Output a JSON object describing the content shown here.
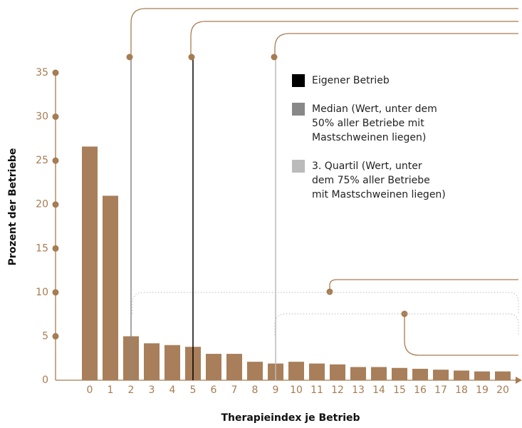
{
  "chart_data": {
    "type": "bar",
    "x_label": "Therapieindex je Betrieb",
    "y_label": "Prozent der Betriebe",
    "categories": [
      0,
      1,
      2,
      3,
      4,
      5,
      6,
      7,
      8,
      9,
      10,
      11,
      12,
      13,
      14,
      15,
      16,
      17,
      18,
      19,
      20
    ],
    "values": [
      26.6,
      21.0,
      5.0,
      4.2,
      4.0,
      3.8,
      3.0,
      3.0,
      2.1,
      1.9,
      2.1,
      1.9,
      1.8,
      1.5,
      1.5,
      1.4,
      1.3,
      1.2,
      1.1,
      1.0,
      1.0
    ],
    "color": "#a87f5a",
    "ylim": [
      0,
      35
    ],
    "yticks": [
      0,
      5,
      10,
      15,
      20,
      25,
      30,
      35
    ],
    "reference_lines": [
      {
        "name_lines": [
          "Eigener Betrieb"
        ],
        "x": 5,
        "color": "#000000"
      },
      {
        "name_lines": [
          "Median (Wert, unter dem",
          "50% aller Betriebe mit",
          "Mastschweinen liegen)"
        ],
        "x": 2,
        "color": "#888888"
      },
      {
        "name_lines": [
          "3. Quartil (Wert, unter",
          "dem 75% aller Betriebe",
          "mit Mastschweinen liegen)"
        ],
        "x": 9,
        "color": "#bbbbbb"
      }
    ]
  }
}
